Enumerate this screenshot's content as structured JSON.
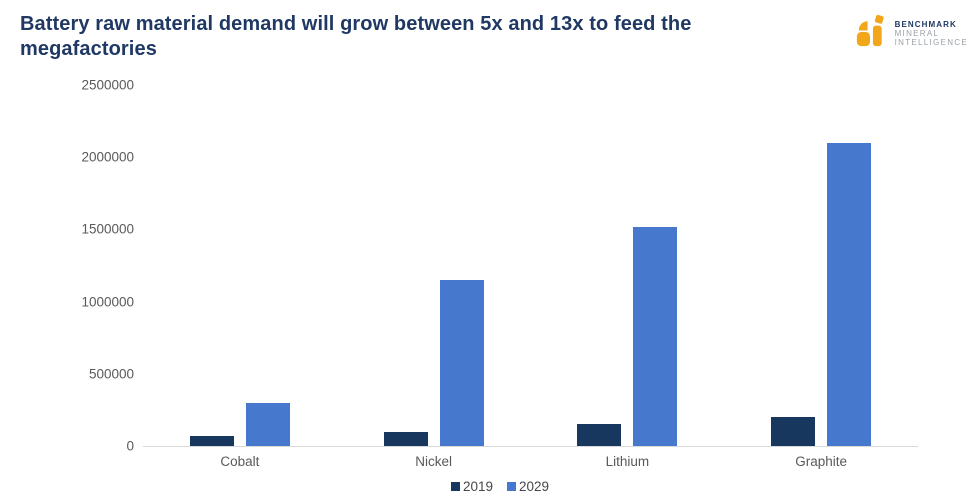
{
  "header": {
    "logo": {
      "icon": "benchmark-bi-monogram",
      "icon_color": "#F2A71B",
      "brand": "BENCHMARK",
      "sub_line1": "MINERAL",
      "sub_line2": "INTELLIGENCE"
    }
  },
  "colors": {
    "title_text": "#1F3864",
    "axis_text": "#595959",
    "axis_line": "#D9D9D9",
    "series_2019": "#17375E",
    "series_2029": "#4678CE"
  },
  "chart_data": {
    "type": "bar",
    "title": "Battery raw material demand will grow between 5x and 13x to feed the megafactories",
    "categories": [
      "Cobalt",
      "Nickel",
      "Lithium",
      "Graphite"
    ],
    "series": [
      {
        "name": "2019",
        "color": "#17375E",
        "values": [
          70000,
          95000,
          150000,
          200000
        ]
      },
      {
        "name": "2029",
        "color": "#4678CE",
        "values": [
          300000,
          1150000,
          1520000,
          2100000
        ]
      }
    ],
    "xlabel": "",
    "ylabel": "",
    "ylim": [
      0,
      2500000
    ],
    "yticks": [
      0,
      500000,
      1000000,
      1500000,
      2000000,
      2500000
    ],
    "ytick_labels": [
      "0",
      "500000",
      "1000000",
      "1500000",
      "2000000",
      "2500000"
    ],
    "grid": false,
    "legend_position": "bottom"
  }
}
